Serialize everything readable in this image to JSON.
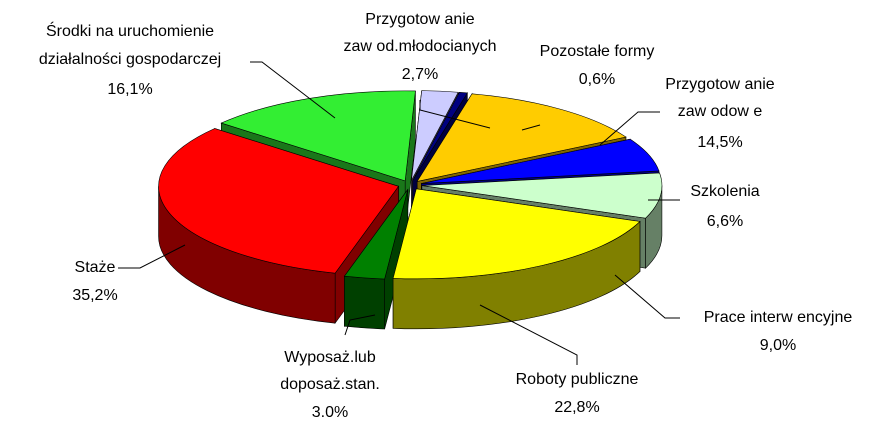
{
  "chart_data": {
    "type": "pie3d",
    "categories": [
      [
        "Środki na uruchomienie",
        "działalności gospodarczej"
      ],
      [
        "Przygotow anie",
        "zaw od.młodocianych"
      ],
      [
        "Pozostałe formy"
      ],
      [
        "Przygotow anie",
        "zaw odow e"
      ],
      [
        "Szkolenia"
      ],
      [
        "Prace interw encyjne"
      ],
      [
        "Roboty publiczne"
      ],
      [
        "Wyposaż.lub",
        "doposaż.stan."
      ],
      [
        "Staże"
      ]
    ],
    "values": [
      16.1,
      2.7,
      0.6,
      14.5,
      6.6,
      9.0,
      22.8,
      3.0,
      35.2
    ],
    "value_labels": [
      "16,1%",
      "2,7%",
      "0,6%",
      "14,5%",
      "6,6%",
      "9,0%",
      "22,8%",
      "3.0%",
      "35,2%"
    ],
    "colors": [
      "#33ee33",
      "#ccccff",
      "#000080",
      "#ffcc00",
      "#0000ff",
      "#ccffcc",
      "#ffff00",
      "#008000",
      "#ff0000"
    ]
  }
}
